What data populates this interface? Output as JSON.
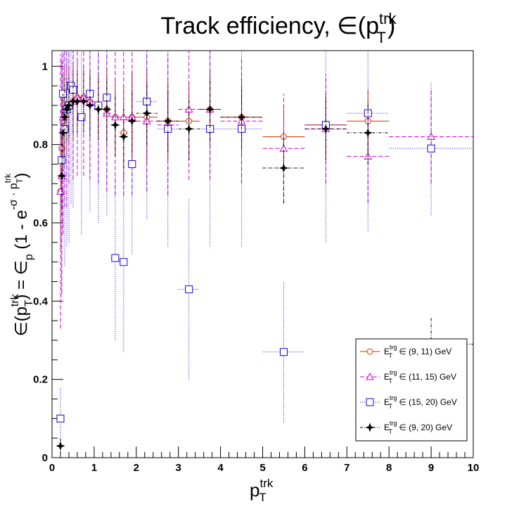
{
  "chart_data": {
    "type": "scatter",
    "title": {
      "base": "Track efficiency, ∈(p",
      "sup": "trk",
      "sub": "T",
      "close": ")"
    },
    "xlabel": {
      "base": "p",
      "sup": "trk",
      "sub": "T"
    },
    "ylabel": {
      "p1": "∈(p",
      "p1_sup": "trk",
      "p1_sub": "T",
      "p2": ") = ∈",
      "p2_sub": "p",
      "p3": " (1 - e",
      "exp": "-σ · p",
      "exp_sup": "trk",
      "exp_sub": "T",
      "p4": ")"
    },
    "xlim": [
      0,
      10
    ],
    "ylim": [
      0,
      1.04
    ],
    "x_ticks": [
      "0",
      "1",
      "2",
      "3",
      "4",
      "5",
      "6",
      "7",
      "8",
      "9",
      "10"
    ],
    "y_ticks": [
      {
        "v": 0,
        "label": "0"
      },
      {
        "v": 0.2,
        "label": "0.2"
      },
      {
        "v": 0.4,
        "label": "0.4"
      },
      {
        "v": 0.6,
        "label": "0.6"
      },
      {
        "v": 0.8,
        "label": "0.8"
      },
      {
        "v": 1.0,
        "label": "1"
      }
    ],
    "grid": false,
    "legend_position": "bottom-right",
    "series": [
      {
        "name": {
          "pre": "E",
          "sup": "trg",
          "sub": "T",
          "post": " ∈ (9, 11) GeV"
        },
        "color": "#cc3300",
        "marker": "circle",
        "dash": "",
        "points": [
          [
            0.2,
            0.68,
            0.05,
            0.15
          ],
          [
            0.23,
            0.79,
            0.05,
            0.15
          ],
          [
            0.26,
            0.86,
            0.05,
            0.12
          ],
          [
            0.3,
            0.88,
            0.05,
            0.12
          ],
          [
            0.35,
            0.89,
            0.05,
            0.12
          ],
          [
            0.4,
            0.9,
            0.05,
            0.1
          ],
          [
            0.5,
            0.91,
            0.08,
            0.1
          ],
          [
            0.6,
            0.92,
            0.08,
            0.1
          ],
          [
            0.75,
            0.92,
            0.1,
            0.08
          ],
          [
            0.9,
            0.91,
            0.1,
            0.08
          ],
          [
            1.1,
            0.9,
            0.1,
            0.08
          ],
          [
            1.3,
            0.89,
            0.1,
            0.1
          ],
          [
            1.5,
            0.87,
            0.1,
            0.1
          ],
          [
            1.7,
            0.83,
            0.1,
            0.12
          ],
          [
            1.9,
            0.87,
            0.1,
            0.12
          ],
          [
            2.25,
            0.87,
            0.25,
            0.12
          ],
          [
            2.75,
            0.86,
            0.25,
            0.1
          ],
          [
            3.25,
            0.86,
            0.25,
            0.1
          ],
          [
            3.75,
            0.89,
            0.25,
            0.1
          ],
          [
            4.5,
            0.87,
            0.5,
            0.1
          ],
          [
            5.5,
            0.82,
            0.5,
            0.08
          ],
          [
            6.5,
            0.85,
            0.5,
            0.08
          ],
          [
            7.5,
            0.86,
            0.5,
            0.08
          ]
        ]
      },
      {
        "name": {
          "pre": "E",
          "sup": "trg",
          "sub": "T",
          "post": " ∈ (11, 15) GeV"
        },
        "color": "#cc00cc",
        "marker": "triangle",
        "dash": "6,3",
        "points": [
          [
            0.2,
            0.68,
            0.05,
            0.35
          ],
          [
            0.23,
            0.72,
            0.05,
            0.3
          ],
          [
            0.26,
            0.87,
            0.05,
            0.3
          ],
          [
            0.3,
            0.89,
            0.05,
            0.25
          ],
          [
            0.35,
            0.89,
            0.05,
            0.25
          ],
          [
            0.4,
            0.9,
            0.05,
            0.2
          ],
          [
            0.5,
            0.91,
            0.08,
            0.2
          ],
          [
            0.6,
            0.92,
            0.08,
            0.2
          ],
          [
            0.75,
            0.92,
            0.1,
            0.2
          ],
          [
            0.9,
            0.91,
            0.1,
            0.2
          ],
          [
            1.1,
            0.9,
            0.1,
            0.2
          ],
          [
            1.3,
            0.88,
            0.1,
            0.2
          ],
          [
            1.5,
            0.87,
            0.1,
            0.2
          ],
          [
            1.7,
            0.87,
            0.1,
            0.2
          ],
          [
            1.9,
            0.87,
            0.1,
            0.2
          ],
          [
            2.25,
            0.86,
            0.25,
            0.18
          ],
          [
            2.75,
            0.85,
            0.25,
            0.18
          ],
          [
            3.25,
            0.89,
            0.25,
            0.18
          ],
          [
            3.75,
            0.89,
            0.25,
            0.18
          ],
          [
            4.5,
            0.86,
            0.5,
            0.16
          ],
          [
            5.5,
            0.79,
            0.5,
            0.14
          ],
          [
            6.5,
            0.84,
            0.5,
            0.14
          ],
          [
            7.5,
            0.77,
            0.5,
            0.12
          ],
          [
            9.0,
            0.82,
            1.0,
            0.12
          ]
        ]
      },
      {
        "name": {
          "pre": "E",
          "sup": "trg",
          "sub": "T",
          "post": " ∈ (15, 20) GeV"
        },
        "color": "#2200cc",
        "marker": "square",
        "dash": "1,2",
        "points": [
          [
            0.2,
            0.1,
            0.05,
            0.08
          ],
          [
            0.23,
            0.76,
            0.05,
            0.35
          ],
          [
            0.26,
            0.93,
            0.05,
            0.35
          ],
          [
            0.3,
            0.84,
            0.05,
            0.35
          ],
          [
            0.35,
            0.89,
            0.05,
            0.35
          ],
          [
            0.4,
            0.9,
            0.05,
            0.35
          ],
          [
            0.45,
            0.95,
            0.05,
            0.3
          ],
          [
            0.5,
            0.94,
            0.05,
            0.3
          ],
          [
            0.7,
            0.87,
            0.1,
            0.3
          ],
          [
            0.9,
            0.93,
            0.1,
            0.3
          ],
          [
            1.1,
            0.9,
            0.1,
            0.3
          ],
          [
            1.3,
            0.92,
            0.1,
            0.3
          ],
          [
            1.5,
            0.51,
            0.1,
            0.21
          ],
          [
            1.7,
            0.5,
            0.1,
            0.23
          ],
          [
            1.9,
            0.75,
            0.1,
            0.23
          ],
          [
            2.25,
            0.91,
            0.25,
            0.3
          ],
          [
            2.75,
            0.84,
            0.25,
            0.3
          ],
          [
            3.25,
            0.43,
            0.25,
            0.23
          ],
          [
            3.75,
            0.84,
            0.25,
            0.3
          ],
          [
            4.5,
            0.84,
            0.5,
            0.3
          ],
          [
            5.5,
            0.27,
            0.5,
            0.18
          ],
          [
            6.5,
            0.85,
            0.5,
            0.3
          ],
          [
            7.5,
            0.88,
            0.5,
            0.3
          ],
          [
            9.0,
            0.79,
            1.0,
            0.17
          ]
        ]
      },
      {
        "name": {
          "pre": "E",
          "sup": "trg",
          "sub": "T",
          "post": " ∈ (9, 20) GeV"
        },
        "color": "#000000",
        "marker": "star",
        "dash": "4,2,1,2",
        "points": [
          [
            0.2,
            0.03,
            0.05,
            0.02
          ],
          [
            0.23,
            0.72,
            0.05,
            0.1
          ],
          [
            0.26,
            0.83,
            0.05,
            0.1
          ],
          [
            0.3,
            0.87,
            0.05,
            0.1
          ],
          [
            0.35,
            0.89,
            0.05,
            0.08
          ],
          [
            0.4,
            0.9,
            0.05,
            0.08
          ],
          [
            0.5,
            0.91,
            0.08,
            0.08
          ],
          [
            0.6,
            0.91,
            0.08,
            0.08
          ],
          [
            0.75,
            0.91,
            0.1,
            0.08
          ],
          [
            0.9,
            0.9,
            0.1,
            0.08
          ],
          [
            1.1,
            0.89,
            0.1,
            0.08
          ],
          [
            1.3,
            0.89,
            0.1,
            0.08
          ],
          [
            1.5,
            0.85,
            0.1,
            0.08
          ],
          [
            1.7,
            0.82,
            0.1,
            0.08
          ],
          [
            1.9,
            0.86,
            0.1,
            0.08
          ],
          [
            2.25,
            0.88,
            0.25,
            0.08
          ],
          [
            2.75,
            0.86,
            0.25,
            0.08
          ],
          [
            3.25,
            0.84,
            0.25,
            0.08
          ],
          [
            3.75,
            0.89,
            0.25,
            0.08
          ],
          [
            4.5,
            0.87,
            0.5,
            0.08
          ],
          [
            5.5,
            0.74,
            0.5,
            0.09
          ],
          [
            6.5,
            0.84,
            0.5,
            0.08
          ],
          [
            7.5,
            0.83,
            0.5,
            0.08
          ],
          [
            9.0,
            0.29,
            1.0,
            0.07
          ]
        ]
      }
    ]
  }
}
